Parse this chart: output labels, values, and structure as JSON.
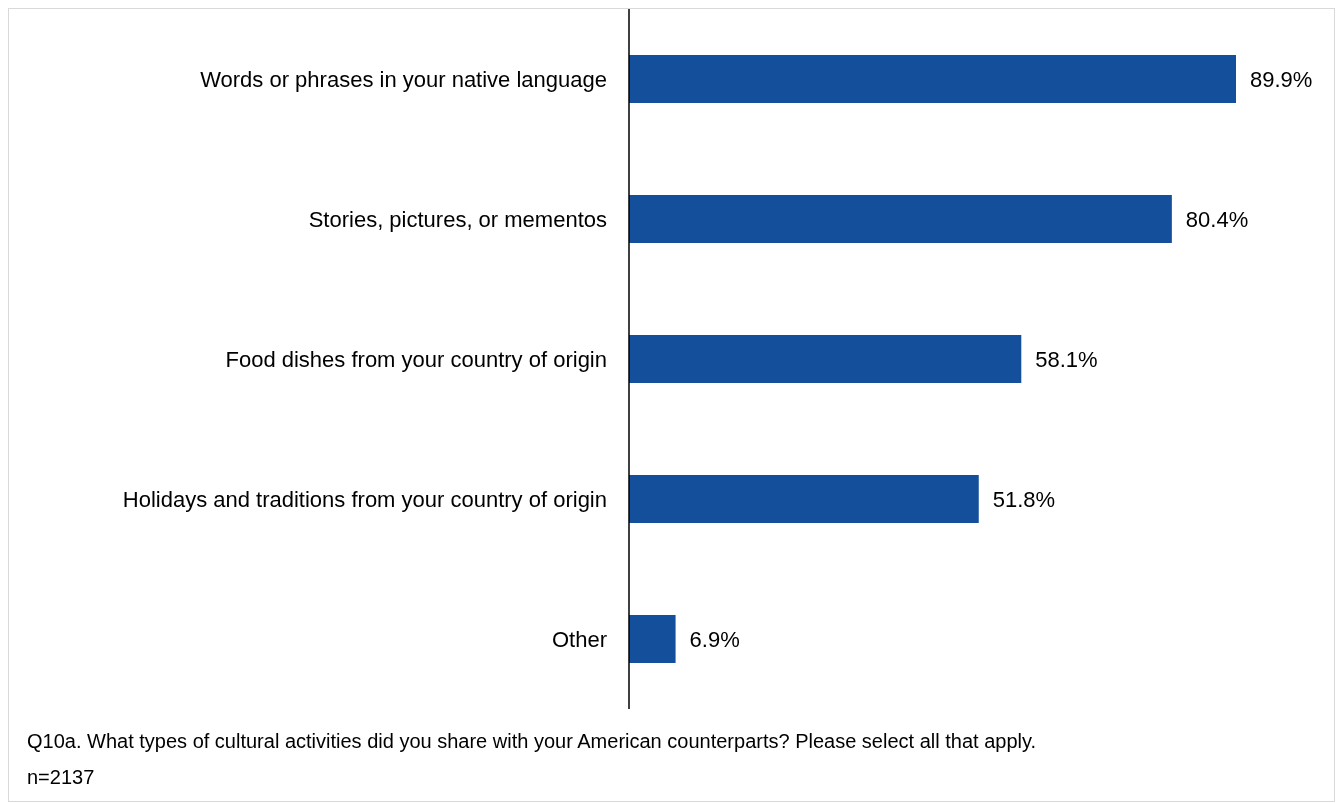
{
  "chart_data": {
    "type": "bar",
    "orientation": "horizontal",
    "categories": [
      "Words or phrases in your native language",
      "Stories, pictures, or mementos",
      "Food dishes from your country of origin",
      "Holidays and traditions from your country of origin",
      "Other"
    ],
    "values": [
      89.9,
      80.4,
      58.1,
      51.8,
      6.9
    ],
    "value_labels": [
      "89.9%",
      "80.4%",
      "58.1%",
      "51.8%",
      "6.9%"
    ],
    "color": "#134f9a",
    "grid": false,
    "legend": false,
    "annotations": [
      "Q10a. What types of cultural activities did you share with your American counterparts?  Please select all that apply.",
      "n=2137"
    ]
  }
}
